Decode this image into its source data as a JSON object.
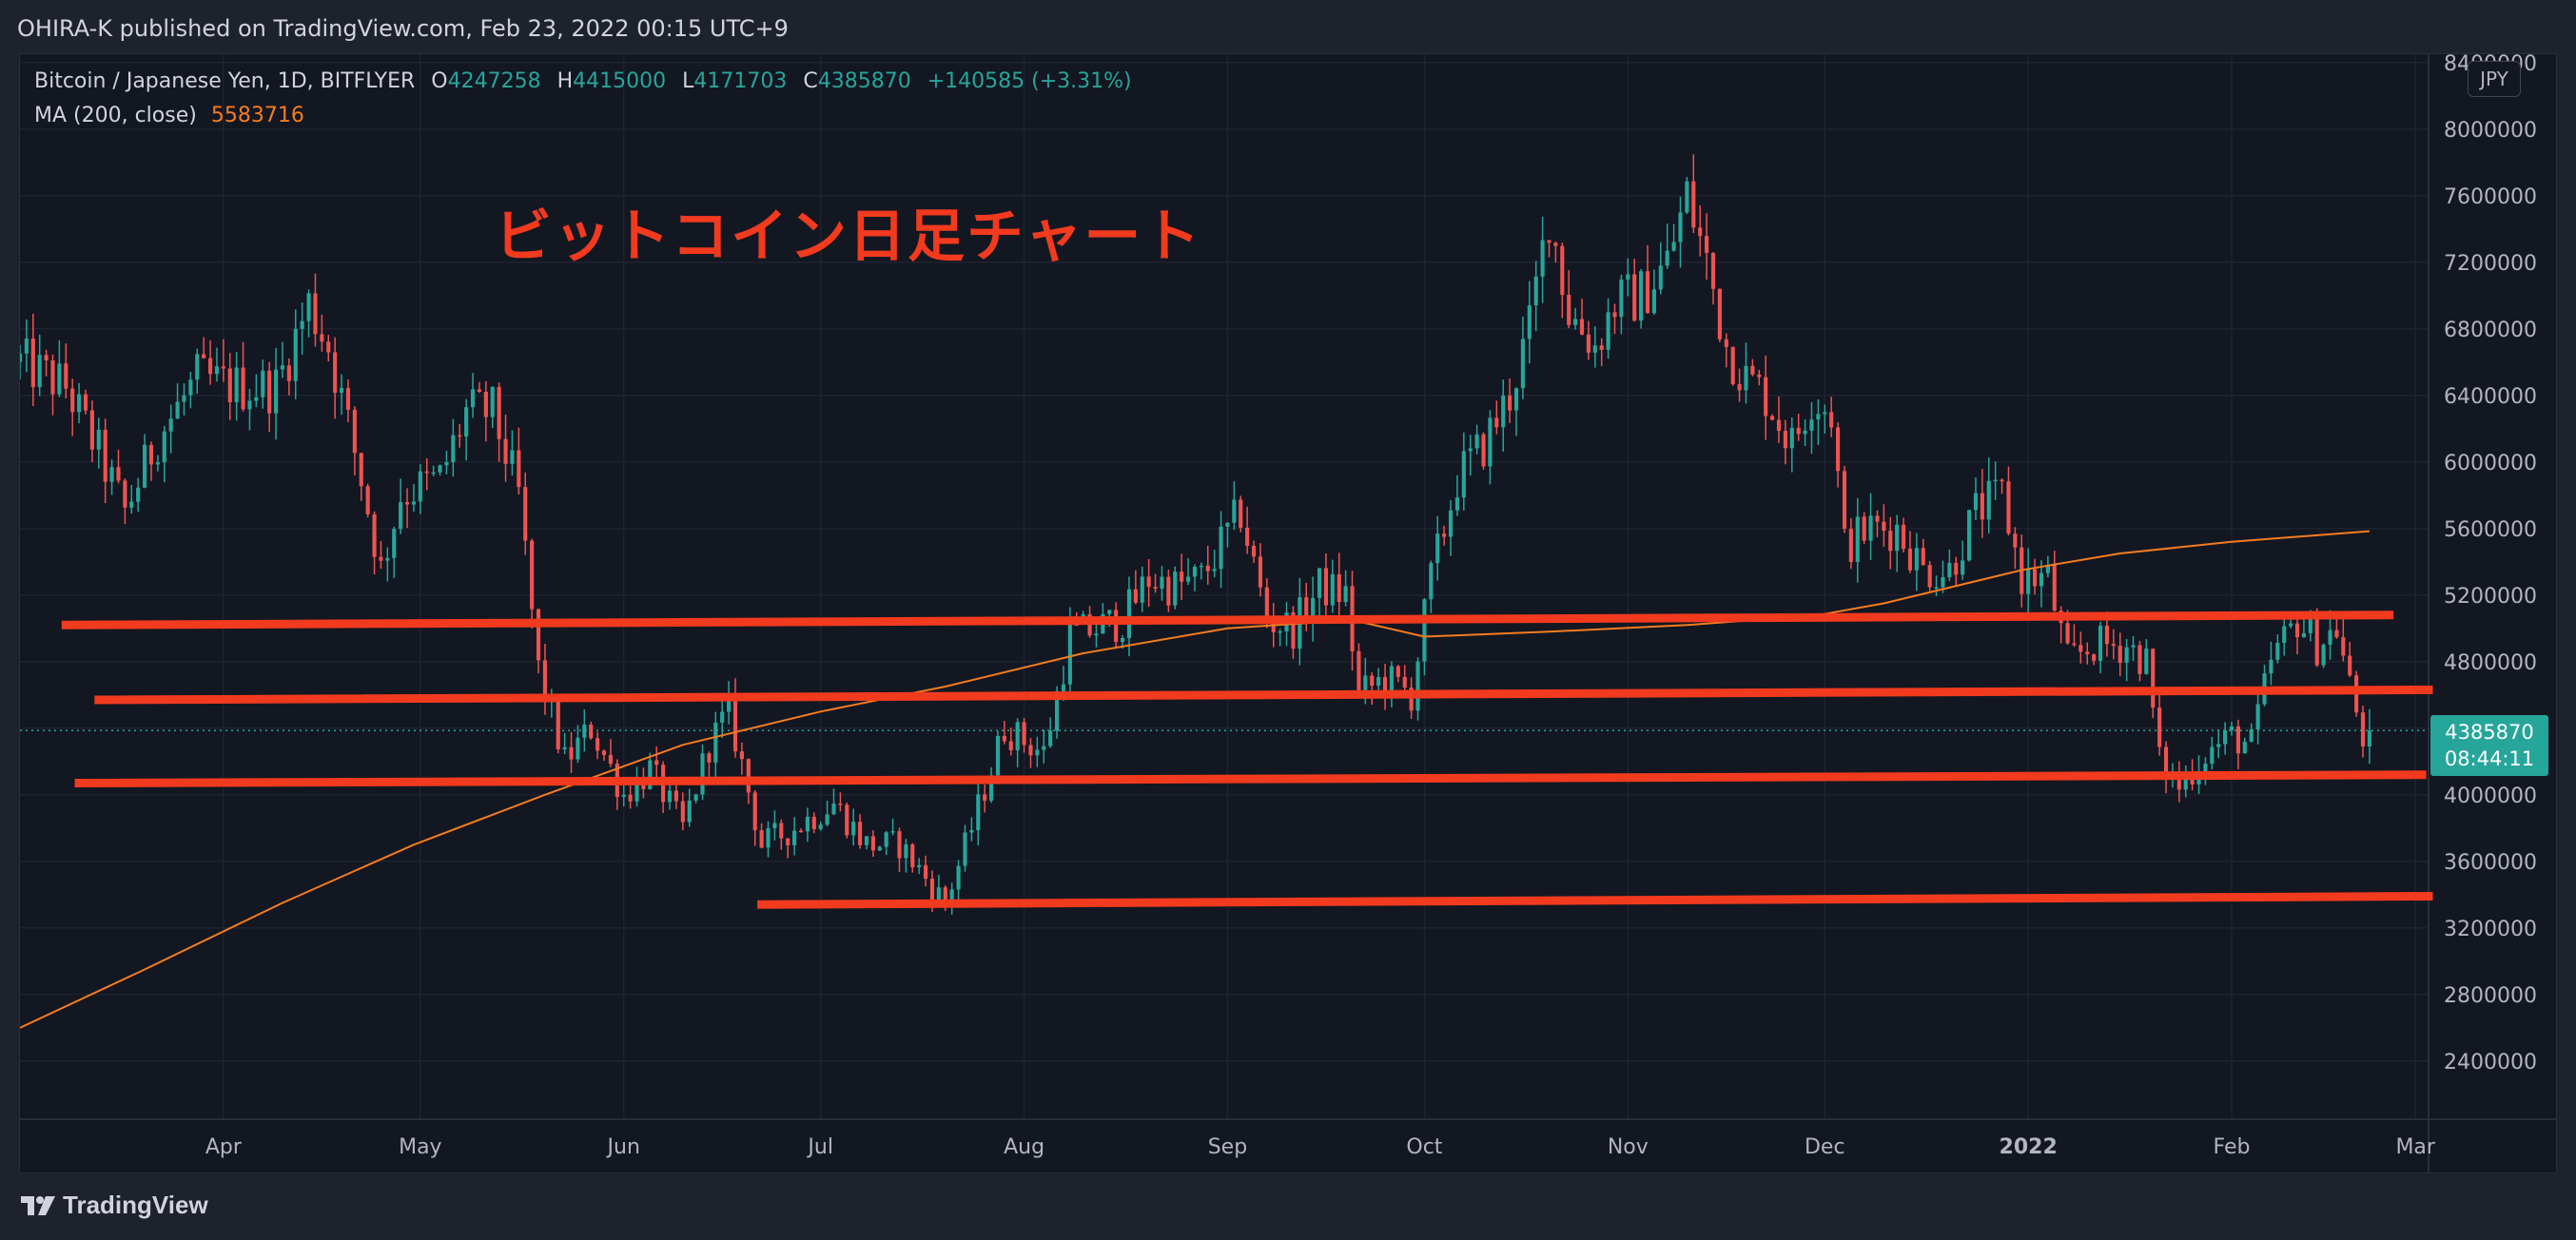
{
  "header": {
    "published_text": "OHIRA-K published on TradingView.com, Feb 23, 2022 00:15 UTC+9"
  },
  "legend": {
    "symbol": "Bitcoin / Japanese Yen, 1D, BITFLYER",
    "open_label": "O",
    "open": "4247258",
    "high_label": "H",
    "high": "4415000",
    "low_label": "L",
    "low": "4171703",
    "close_label": "C",
    "close": "4385870",
    "change": "+140585 (+3.31%)",
    "ma_label": "MA (200, close)",
    "ma_value": "5583716"
  },
  "annotation": {
    "title": "ビットコイン日足チャート"
  },
  "currency_button": "JPY",
  "price_badge": {
    "price": "4385870",
    "countdown": "08:44:11"
  },
  "footer": {
    "brand": "TradingView"
  },
  "colors": {
    "up": "#26a69a",
    "down": "#ef5350",
    "ma": "#f57c1f",
    "drawn_lines": "#f23a1e",
    "grid": "#1f2330",
    "background": "#131722"
  },
  "chart_data": {
    "type": "candlestick",
    "title": "",
    "symbol": "Bitcoin / Japanese Yen, 1D, BITFLYER",
    "ylim": [
      2050000,
      8450000
    ],
    "y_axis_position": "right",
    "y_ticks": [
      2400000,
      2800000,
      3200000,
      3600000,
      4000000,
      4400000,
      4800000,
      5200000,
      5600000,
      6000000,
      6400000,
      6800000,
      7200000,
      7600000,
      8000000,
      8400000
    ],
    "x_range": [
      "2021-03-01",
      "2022-03-03"
    ],
    "x_ticks": [
      {
        "label": "Apr",
        "date": "2021-04-01",
        "bold": false
      },
      {
        "label": "May",
        "date": "2021-05-01",
        "bold": false
      },
      {
        "label": "Jun",
        "date": "2021-06-01",
        "bold": false
      },
      {
        "label": "Jul",
        "date": "2021-07-01",
        "bold": false
      },
      {
        "label": "Aug",
        "date": "2021-08-01",
        "bold": false
      },
      {
        "label": "Sep",
        "date": "2021-09-01",
        "bold": false
      },
      {
        "label": "Oct",
        "date": "2021-10-01",
        "bold": false
      },
      {
        "label": "Nov",
        "date": "2021-11-01",
        "bold": false
      },
      {
        "label": "Dec",
        "date": "2021-12-01",
        "bold": false
      },
      {
        "label": "2022",
        "date": "2022-01-01",
        "bold": true
      },
      {
        "label": "Feb",
        "date": "2022-02-01",
        "bold": false
      },
      {
        "label": "Mar",
        "date": "2022-03-01",
        "bold": false
      }
    ],
    "grid": true,
    "last_price": 4385870,
    "close_path": [
      [
        "2021-03-01",
        6600000
      ],
      [
        "2021-03-08",
        6450000
      ],
      [
        "2021-03-13",
        6050000
      ],
      [
        "2021-03-17",
        5700000
      ],
      [
        "2021-03-22",
        6150000
      ],
      [
        "2021-03-28",
        6500000
      ],
      [
        "2021-04-03",
        6450000
      ],
      [
        "2021-04-09",
        6450000
      ],
      [
        "2021-04-14",
        6950000
      ],
      [
        "2021-04-17",
        6700000
      ],
      [
        "2021-04-22",
        5900000
      ],
      [
        "2021-04-25",
        5350000
      ],
      [
        "2021-04-28",
        5800000
      ],
      [
        "2021-05-04",
        5900000
      ],
      [
        "2021-05-08",
        6300000
      ],
      [
        "2021-05-12",
        6300000
      ],
      [
        "2021-05-16",
        5800000
      ],
      [
        "2021-05-19",
        4750000
      ],
      [
        "2021-05-23",
        4200000
      ],
      [
        "2021-05-27",
        4400000
      ],
      [
        "2021-06-01",
        4000000
      ],
      [
        "2021-06-05",
        4150000
      ],
      [
        "2021-06-10",
        3800000
      ],
      [
        "2021-06-14",
        4300000
      ],
      [
        "2021-06-17",
        4500000
      ],
      [
        "2021-06-22",
        3700000
      ],
      [
        "2021-06-27",
        3800000
      ],
      [
        "2021-07-03",
        3950000
      ],
      [
        "2021-07-08",
        3700000
      ],
      [
        "2021-07-13",
        3700000
      ],
      [
        "2021-07-17",
        3500000
      ],
      [
        "2021-07-20",
        3350000
      ],
      [
        "2021-07-24",
        3800000
      ],
      [
        "2021-07-29",
        4400000
      ],
      [
        "2021-08-04",
        4250000
      ],
      [
        "2021-08-08",
        4950000
      ],
      [
        "2021-08-12",
        5000000
      ],
      [
        "2021-08-16",
        5050000
      ],
      [
        "2021-08-20",
        5300000
      ],
      [
        "2021-08-24",
        5250000
      ],
      [
        "2021-08-28",
        5300000
      ],
      [
        "2021-09-03",
        5700000
      ],
      [
        "2021-09-07",
        5050000
      ],
      [
        "2021-09-11",
        5000000
      ],
      [
        "2021-09-15",
        5250000
      ],
      [
        "2021-09-19",
        5200000
      ],
      [
        "2021-09-21",
        4600000
      ],
      [
        "2021-09-25",
        4700000
      ],
      [
        "2021-09-29",
        4600000
      ],
      [
        "2021-10-02",
        5300000
      ],
      [
        "2021-10-06",
        5900000
      ],
      [
        "2021-10-10",
        6100000
      ],
      [
        "2021-10-14",
        6400000
      ],
      [
        "2021-10-17",
        6800000
      ],
      [
        "2021-10-20",
        7500000
      ],
      [
        "2021-10-23",
        6900000
      ],
      [
        "2021-10-27",
        6700000
      ],
      [
        "2021-10-30",
        6950000
      ],
      [
        "2021-11-03",
        7000000
      ],
      [
        "2021-11-07",
        7200000
      ],
      [
        "2021-11-10",
        7600000
      ],
      [
        "2021-11-13",
        7200000
      ],
      [
        "2021-11-16",
        6700000
      ],
      [
        "2021-11-19",
        6500000
      ],
      [
        "2021-11-22",
        6400000
      ],
      [
        "2021-11-26",
        6100000
      ],
      [
        "2021-11-29",
        6400000
      ],
      [
        "2021-12-02",
        6300000
      ],
      [
        "2021-12-04",
        5500000
      ],
      [
        "2021-12-08",
        5600000
      ],
      [
        "2021-12-12",
        5600000
      ],
      [
        "2021-12-16",
        5350000
      ],
      [
        "2021-12-20",
        5350000
      ],
      [
        "2021-12-24",
        5700000
      ],
      [
        "2021-12-28",
        5800000
      ],
      [
        "2021-12-31",
        5300000
      ],
      [
        "2022-01-04",
        5300000
      ],
      [
        "2022-01-07",
        4800000
      ],
      [
        "2022-01-11",
        4900000
      ],
      [
        "2022-01-16",
        4900000
      ],
      [
        "2022-01-19",
        4800000
      ],
      [
        "2022-01-21",
        4200000
      ],
      [
        "2022-01-24",
        4050000
      ],
      [
        "2022-01-28",
        4250000
      ],
      [
        "2022-02-01",
        4350000
      ],
      [
        "2022-02-04",
        4300000
      ],
      [
        "2022-02-07",
        4800000
      ],
      [
        "2022-02-11",
        5050000
      ],
      [
        "2022-02-14",
        4900000
      ],
      [
        "2022-02-17",
        5000000
      ],
      [
        "2022-02-19",
        4650000
      ],
      [
        "2022-02-21",
        4350000
      ],
      [
        "2022-02-22",
        4385870
      ]
    ],
    "series": [
      {
        "name": "MA (200, close)",
        "type": "line",
        "last_value": 5583716,
        "points": [
          [
            "2021-03-01",
            2600000
          ],
          [
            "2021-03-20",
            2950000
          ],
          [
            "2021-04-10",
            3350000
          ],
          [
            "2021-04-30",
            3700000
          ],
          [
            "2021-05-20",
            4000000
          ],
          [
            "2021-06-10",
            4300000
          ],
          [
            "2021-07-01",
            4500000
          ],
          [
            "2021-07-20",
            4650000
          ],
          [
            "2021-08-10",
            4850000
          ],
          [
            "2021-09-01",
            5000000
          ],
          [
            "2021-09-20",
            5050000
          ],
          [
            "2021-10-01",
            4950000
          ],
          [
            "2021-10-20",
            4980000
          ],
          [
            "2021-11-10",
            5020000
          ],
          [
            "2021-11-30",
            5080000
          ],
          [
            "2021-12-10",
            5150000
          ],
          [
            "2021-12-31",
            5350000
          ],
          [
            "2022-01-15",
            5450000
          ],
          [
            "2022-02-01",
            5520000
          ],
          [
            "2022-02-22",
            5583716
          ]
        ]
      }
    ],
    "drawn_horizontal_lines": [
      {
        "start": [
          "2021-03-08",
          5020000
        ],
        "end": [
          "2022-02-25",
          5080000
        ]
      },
      {
        "start": [
          "2021-03-13",
          4570000
        ],
        "end": [
          "2022-03-03",
          4630000
        ]
      },
      {
        "start": [
          "2021-03-10",
          4070000
        ],
        "end": [
          "2022-03-02",
          4120000
        ]
      },
      {
        "start": [
          "2021-06-22",
          3340000
        ],
        "end": [
          "2022-03-03",
          3390000
        ]
      }
    ]
  }
}
